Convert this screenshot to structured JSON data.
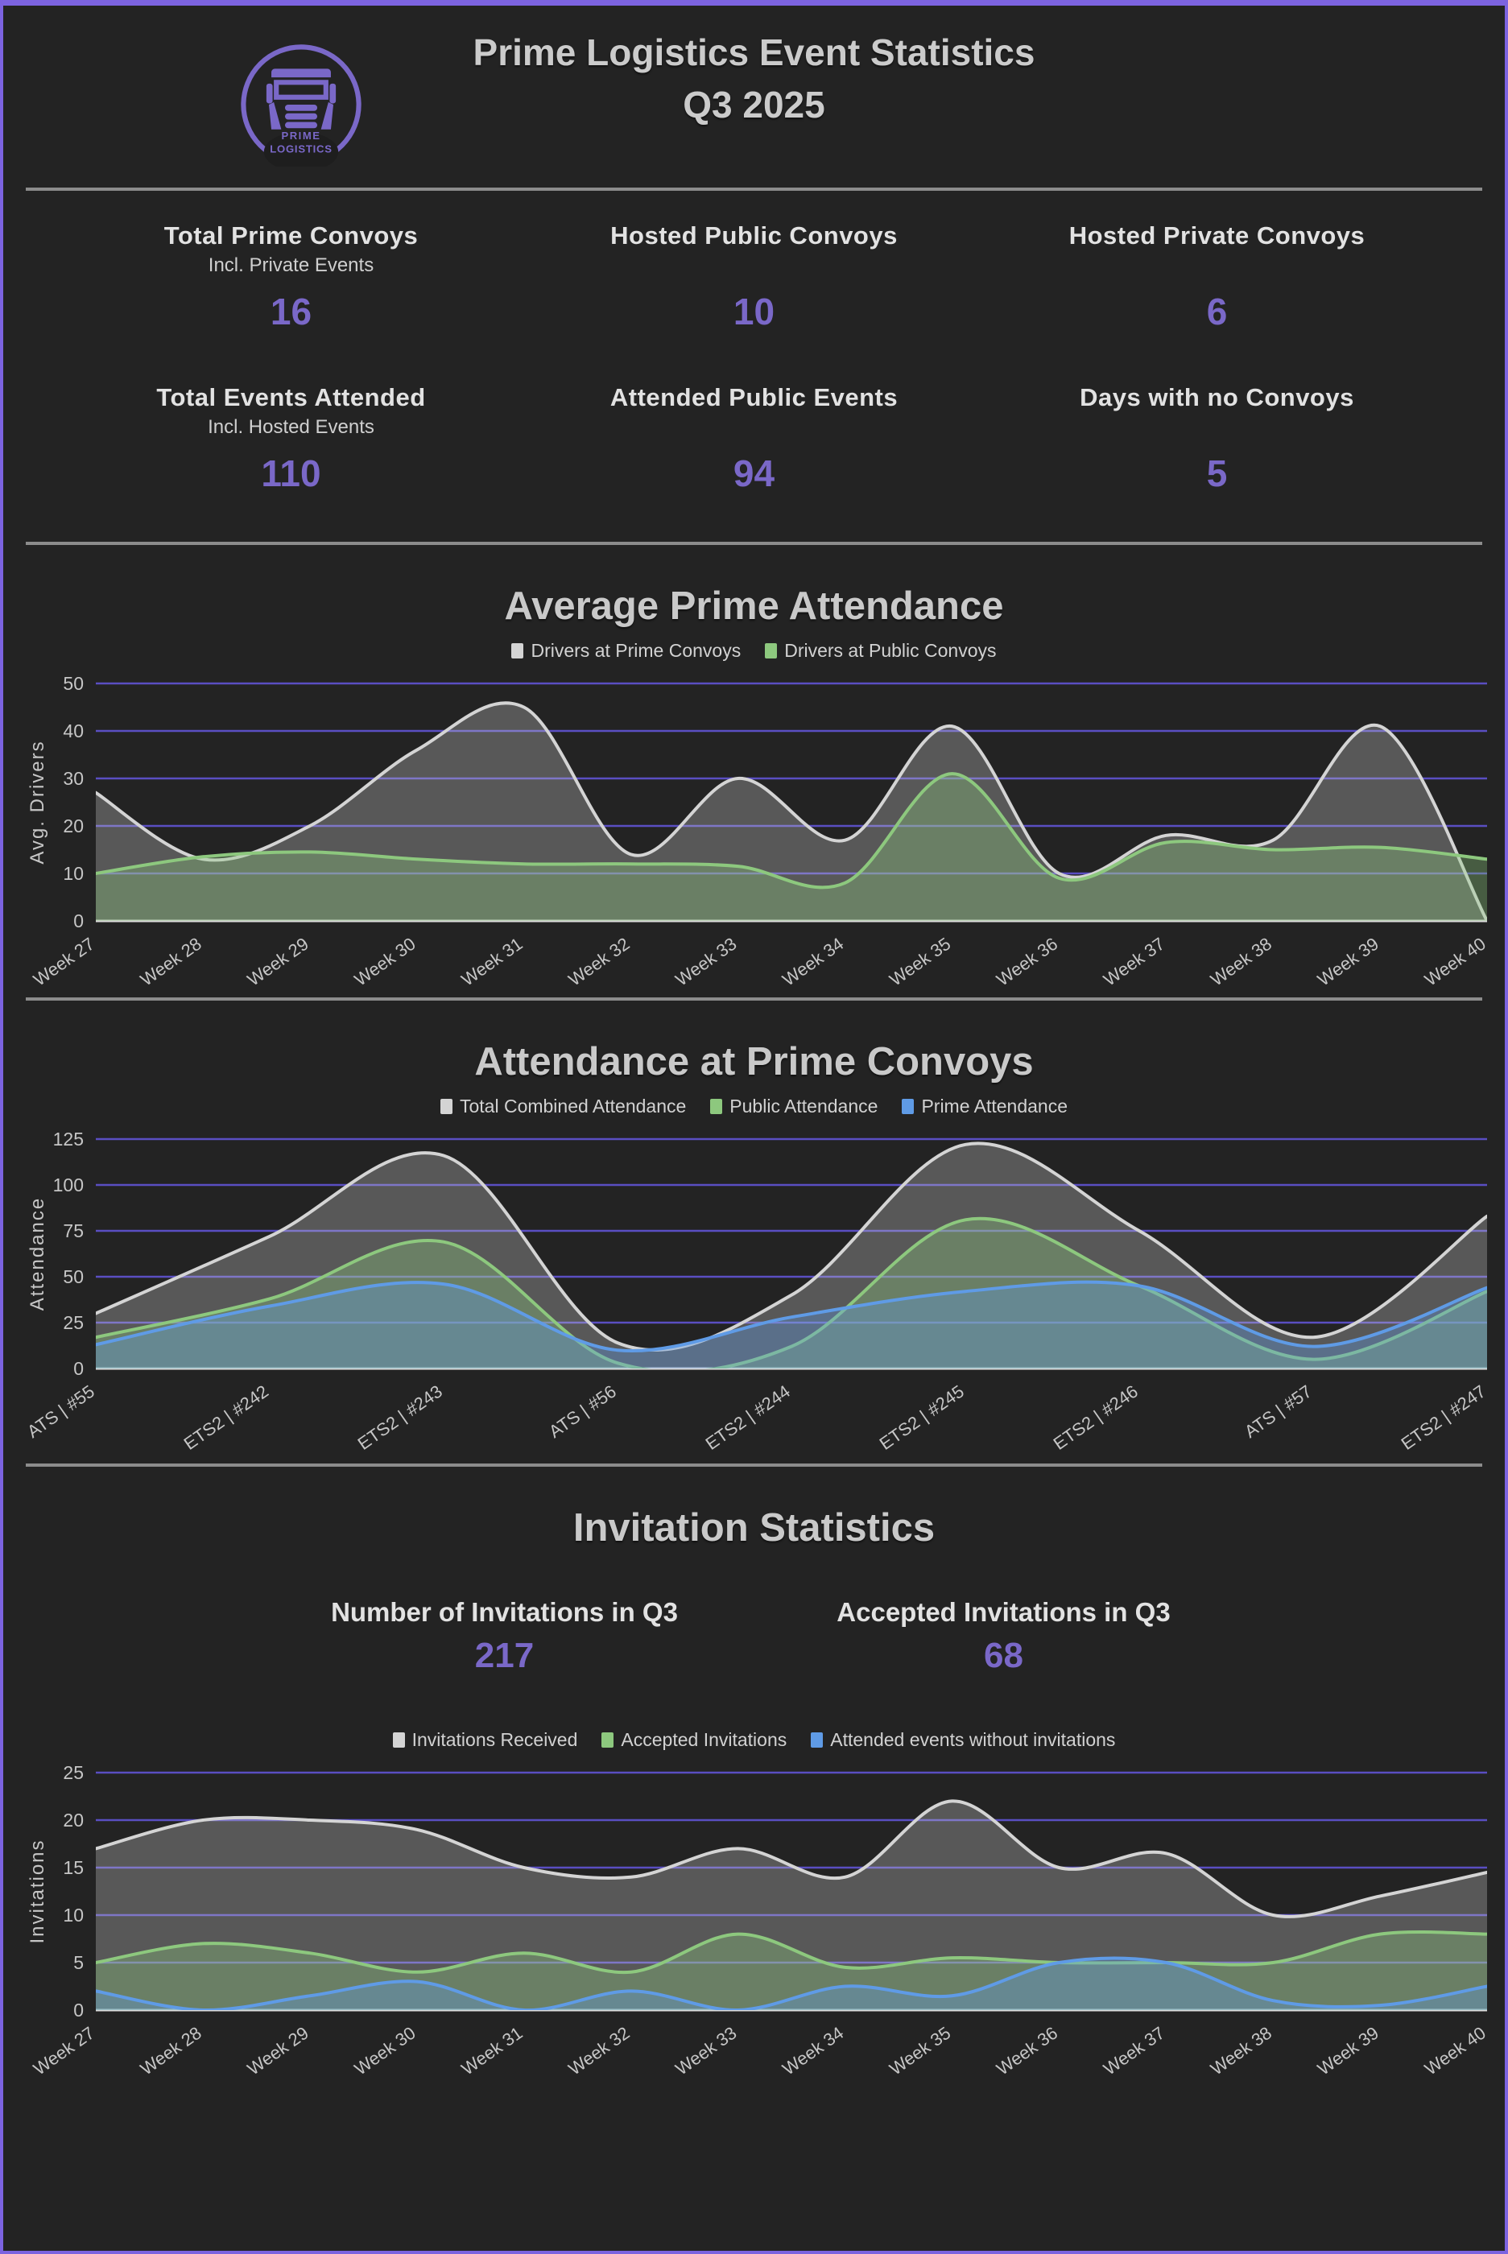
{
  "header": {
    "title_line1": "Prime Logistics Event Statistics",
    "title_line2": "Q3 2025",
    "logo_line1": "PRIME",
    "logo_line2": "LOGISTICS"
  },
  "colors": {
    "background": "#232323",
    "border": "#7c63e0",
    "accent": "#7a68c8",
    "grid": "#5a4ec2",
    "baseline": "#dcdcdc",
    "separator": "#8c8c8c",
    "heading": "#c9c9c9",
    "tick_text": "#c6c6c6",
    "series_gray_stroke": "#d4d4d4",
    "series_gray_fill": "rgba(212,212,212,0.30)",
    "series_green_stroke": "#8dc87e",
    "series_green_fill": "rgba(141,200,126,0.35)",
    "series_blue_stroke": "#5f9be6",
    "series_blue_fill": "rgba(95,155,230,0.35)"
  },
  "summary_stats": [
    {
      "label": "Total Prime Convoys",
      "sublabel": "Incl. Private Events",
      "value": "16"
    },
    {
      "label": "Hosted Public Convoys",
      "sublabel": "",
      "value": "10"
    },
    {
      "label": "Hosted Private Convoys",
      "sublabel": "",
      "value": "6"
    },
    {
      "label": "Total Events Attended",
      "sublabel": "Incl. Hosted Events",
      "value": "110"
    },
    {
      "label": "Attended Public Events",
      "sublabel": "",
      "value": "94"
    },
    {
      "label": "Days with no Convoys",
      "sublabel": "",
      "value": "5"
    }
  ],
  "invitation_stats": {
    "items": [
      {
        "label": "Number of Invitations in Q3",
        "value": "217"
      },
      {
        "label": "Accepted Invitations in Q3",
        "value": "68"
      }
    ]
  },
  "chart_data": [
    {
      "type": "area",
      "title": "Average Prime Attendance",
      "ylabel": "Avg. Drivers",
      "ylim": [
        0,
        50
      ],
      "ystep": 10,
      "grid": true,
      "legend_position": "top",
      "categories": [
        "Week 27",
        "Week 28",
        "Week 29",
        "Week 30",
        "Week 31",
        "Week 32",
        "Week 33",
        "Week 34",
        "Week 35",
        "Week 36",
        "Week 37",
        "Week 38",
        "Week 39",
        "Week 40"
      ],
      "series": [
        {
          "name": "Drivers at Prime Convoys",
          "color": "gray",
          "values": [
            27,
            13,
            20,
            36,
            45,
            14,
            30,
            17,
            41,
            10,
            18,
            17,
            41,
            0
          ]
        },
        {
          "name": "Drivers at Public Convoys",
          "color": "green",
          "values": [
            10,
            13.5,
            14.5,
            13,
            12,
            12,
            11.5,
            8,
            31,
            9,
            16.5,
            15,
            15.5,
            13
          ]
        }
      ]
    },
    {
      "type": "area",
      "title": "Attendance at Prime Convoys",
      "ylabel": "Attendance",
      "ylim": [
        0,
        125
      ],
      "ystep": 25,
      "grid": true,
      "legend_position": "top",
      "categories": [
        "ATS | #55",
        "ETS2 | #242",
        "ETS2 | #243",
        "ATS | #56",
        "ETS2 | #244",
        "ETS2 | #245",
        "ETS2 | #246",
        "ATS | #57",
        "ETS2 | #247"
      ],
      "series": [
        {
          "name": "Total Combined Attendance",
          "color": "gray",
          "values": [
            30,
            72,
            116,
            14,
            40,
            122,
            75,
            17,
            83
          ]
        },
        {
          "name": "Public Attendance",
          "color": "green",
          "values": [
            17,
            38,
            69,
            3,
            12,
            81,
            45,
            5,
            42
          ]
        },
        {
          "name": "Prime Attendance",
          "color": "blue",
          "values": [
            13,
            34,
            46,
            10,
            28,
            42,
            45,
            12,
            44
          ]
        }
      ]
    },
    {
      "type": "area",
      "title": "Invitation Statistics",
      "ylabel": "Invitations",
      "ylim": [
        0,
        25
      ],
      "ystep": 5,
      "grid": true,
      "legend_position": "top",
      "categories": [
        "Week 27",
        "Week 28",
        "Week 29",
        "Week 30",
        "Week 31",
        "Week 32",
        "Week 33",
        "Week 34",
        "Week 35",
        "Week 36",
        "Week 37",
        "Week 38",
        "Week 39",
        "Week 40"
      ],
      "series": [
        {
          "name": "Invitations Received",
          "color": "gray",
          "values": [
            17,
            20,
            20,
            19,
            15,
            14,
            17,
            14,
            22,
            15,
            16.5,
            10,
            12,
            14.5
          ]
        },
        {
          "name": "Accepted Invitations",
          "color": "green",
          "values": [
            5,
            7,
            6,
            4,
            6,
            4,
            8,
            4.5,
            5.5,
            5,
            5,
            5,
            8,
            8
          ]
        },
        {
          "name": "Attended events without invitations",
          "color": "blue",
          "values": [
            2,
            0,
            1.5,
            3,
            0,
            2,
            0,
            2.5,
            1.5,
            5,
            5,
            1,
            0.5,
            2.5
          ]
        }
      ]
    }
  ]
}
